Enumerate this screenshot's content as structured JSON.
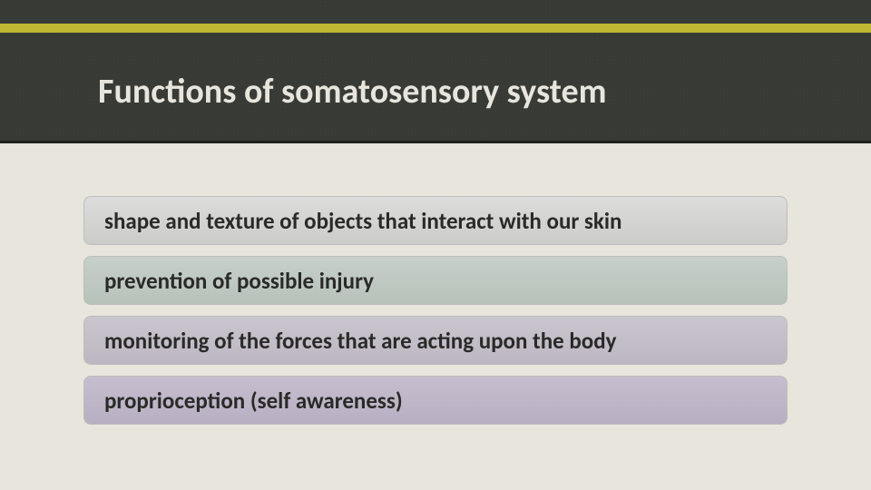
{
  "slide": {
    "title": "Functions of somatosensory system",
    "title_color": "#e8e6dc",
    "title_fontsize": 38,
    "header_bg": "#373a35",
    "accent_color": "#c0b734",
    "page_bg": "#e8e6dc",
    "items": [
      {
        "text": "shape and texture of objects that interact with our skin",
        "gradient_top": "#dcdcdc",
        "gradient_bottom": "#ccccc9"
      },
      {
        "text": "prevention of possible injury",
        "gradient_top": "#c7d0ca",
        "gradient_bottom": "#b6c2ba"
      },
      {
        "text": "monitoring of the forces that are acting upon the body",
        "gradient_top": "#cac6ce",
        "gradient_bottom": "#bcb7c2"
      },
      {
        "text": "proprioception (self awareness)",
        "gradient_top": "#c6bece",
        "gradient_bottom": "#b8afc2"
      }
    ],
    "item_fontsize": 25,
    "item_text_color": "#2a2a28",
    "item_border_color": "#bdbdbd",
    "item_border_radius": 8
  }
}
